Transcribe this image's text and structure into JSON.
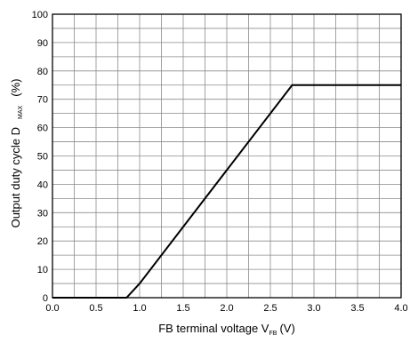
{
  "chart_data": {
    "type": "line",
    "title": "",
    "xlabel": {
      "main": "FB terminal voltage V",
      "subscript": "FB",
      "unit": "(V)"
    },
    "ylabel": {
      "main": "Output duty cycle D",
      "subscript": "MAX",
      "unit": "(%)"
    },
    "xlim": [
      0.0,
      4.0
    ],
    "ylim": [
      0,
      100
    ],
    "x_ticks": [
      "0.0",
      "0.5",
      "1.0",
      "1.5",
      "2.0",
      "2.5",
      "3.0",
      "3.5",
      "4.0"
    ],
    "y_ticks": [
      "0",
      "10",
      "20",
      "30",
      "40",
      "50",
      "60",
      "70",
      "80",
      "90",
      "100"
    ],
    "x_minor_step": 0.25,
    "y_minor_step": 5,
    "grid": true,
    "series": [
      {
        "x": [
          0.0,
          0.85,
          1.0,
          2.75,
          4.0
        ],
        "y": [
          0,
          0,
          5,
          75,
          75
        ]
      }
    ],
    "colors": {
      "line": "#000000",
      "grid": "#8c8c8c",
      "frame": "#000000"
    }
  }
}
